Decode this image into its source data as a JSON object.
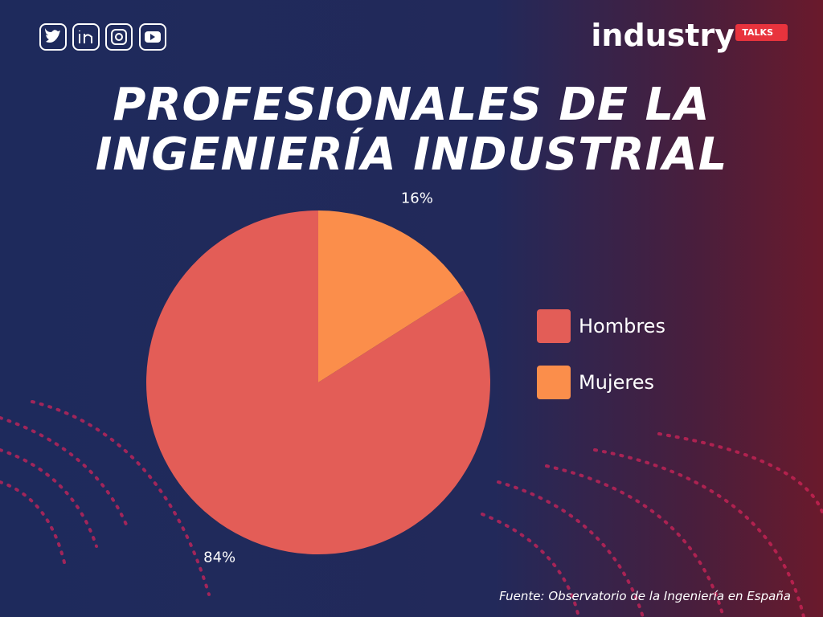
{
  "brand": {
    "name": "industry",
    "tag": "TALKS"
  },
  "chart_data": {
    "type": "pie",
    "title": "PROFESIONALES DE LA INGENIERÍA INDUSTRIAL",
    "categories": [
      "Hombres",
      "Mujeres"
    ],
    "values": [
      84,
      16
    ],
    "value_labels": [
      "84%",
      "16%"
    ],
    "colors": [
      "#e35d57",
      "#fb8e4b"
    ],
    "legend": "right"
  },
  "source": "Fuente: Observatorio de la Ingeniería en España"
}
